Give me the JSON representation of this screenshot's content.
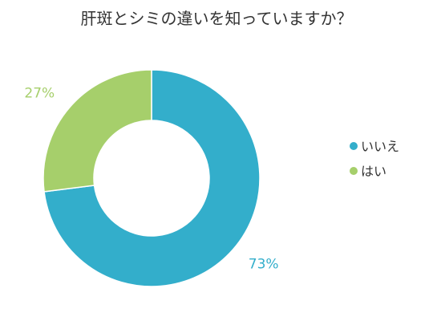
{
  "chart_data": {
    "type": "pie",
    "title": "肝斑とシミの違いを知っていますか？",
    "donut": true,
    "legend_position": "right",
    "series": [
      {
        "name": "いいえ",
        "value": 73,
        "label": "73%",
        "color": "#33aecb"
      },
      {
        "name": "はい",
        "value": 27,
        "label": "27%",
        "color": "#a6cf6b"
      }
    ]
  }
}
